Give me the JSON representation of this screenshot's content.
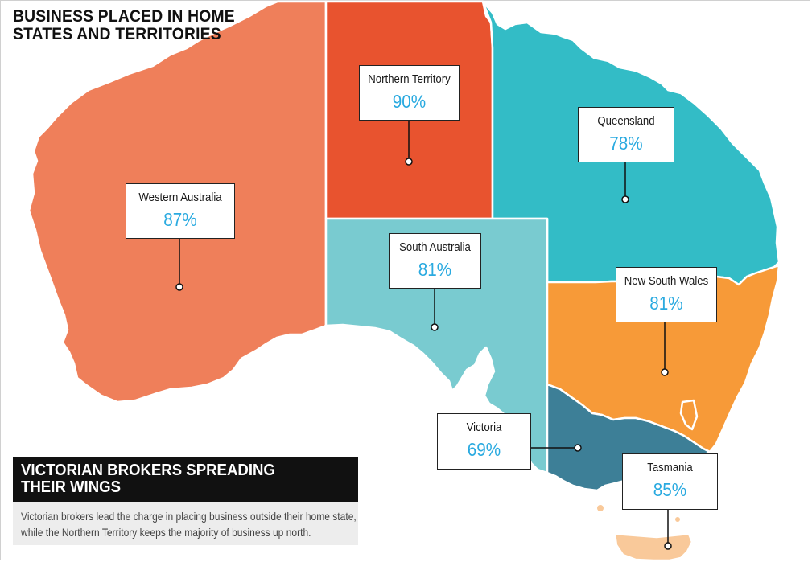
{
  "title": "BUSINESS PLACED IN HOME STATES AND TERRITORIES",
  "regions": [
    {
      "id": "wa",
      "name": "Western Australia",
      "value": "87%",
      "color": "#ef7f5a"
    },
    {
      "id": "nt",
      "name": "Northern Territory",
      "value": "90%",
      "color": "#e8532f"
    },
    {
      "id": "qld",
      "name": "Queensland",
      "value": "78%",
      "color": "#33bcc6"
    },
    {
      "id": "sa",
      "name": "South Australia",
      "value": "81%",
      "color": "#79cbd0"
    },
    {
      "id": "nsw",
      "name": "New South Wales",
      "value": "81%",
      "color": "#f79a38"
    },
    {
      "id": "vic",
      "name": "Victoria",
      "value": "69%",
      "color": "#3d7f97"
    },
    {
      "id": "tas",
      "name": "Tasmania",
      "value": "85%",
      "color": "#f9c99a"
    }
  ],
  "panel": {
    "heading": "VICTORIAN BROKERS SPREADING THEIR WINGS",
    "heading_line1": "VICTORIAN BROKERS SPREADING",
    "heading_line2": "THEIR WINGS",
    "body_line1": "Victorian brokers lead the charge in placing business outside their home state,",
    "body_line2": "while the Northern Territory keeps the majority of business up north."
  },
  "colors": {
    "value_text": "#2aaae0",
    "border": "#ffffff",
    "panel_bg": "#111111"
  }
}
